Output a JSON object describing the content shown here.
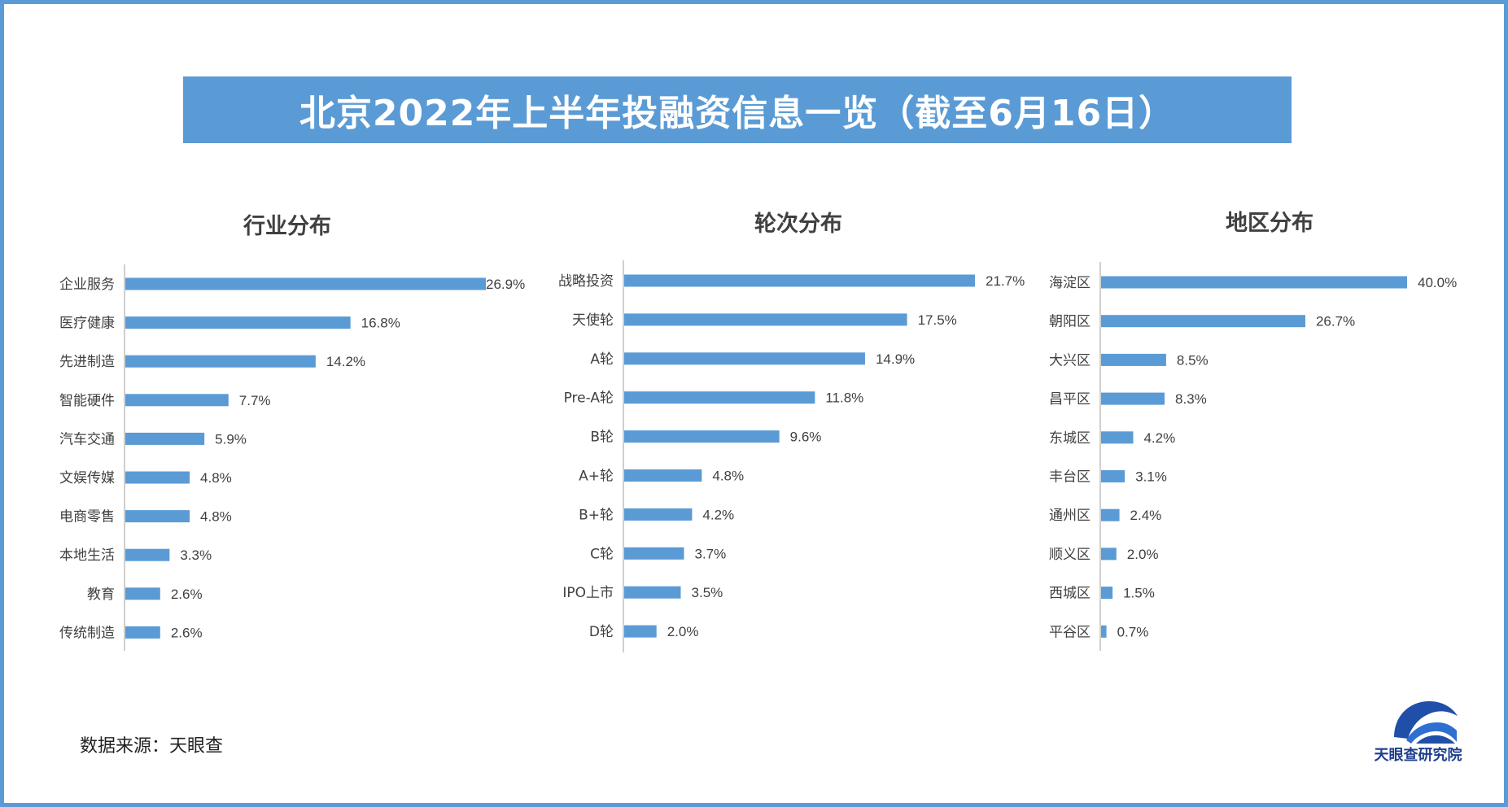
{
  "title": "北京2022年上半年投融资信息一览（截至6月16日）",
  "source": "数据来源：天眼查",
  "logo": {
    "text": "天眼查研究院",
    "icon": "tianyancha-logo-icon"
  },
  "colors": {
    "bar": "#5b9bd5",
    "frame": "#5b9bd5",
    "axis": "#bfbfbf"
  },
  "chart_data": [
    {
      "type": "bar",
      "orientation": "horizontal",
      "title": "行业分布",
      "categories": [
        "企业服务",
        "医疗健康",
        "先进制造",
        "智能硬件",
        "汽车交通",
        "文娱传媒",
        "电商零售",
        "本地生活",
        "教育",
        "传统制造"
      ],
      "values": [
        26.9,
        16.8,
        14.2,
        7.7,
        5.9,
        4.8,
        4.8,
        3.3,
        2.6,
        2.6
      ],
      "data_labels": [
        "26.9%",
        "16.8%",
        "14.2%",
        "7.7%",
        "5.9%",
        "4.8%",
        "4.8%",
        "3.3%",
        "2.6%",
        "2.6%"
      ],
      "unit": "%"
    },
    {
      "type": "bar",
      "orientation": "horizontal",
      "title": "轮次分布",
      "categories": [
        "战略投资",
        "天使轮",
        "A轮",
        "Pre-A轮",
        "B轮",
        "A+轮",
        "B+轮",
        "C轮",
        "IPO上市",
        "D轮"
      ],
      "values": [
        21.7,
        17.5,
        14.9,
        11.8,
        9.6,
        4.8,
        4.2,
        3.7,
        3.5,
        2.0
      ],
      "data_labels": [
        "21.7%",
        "17.5%",
        "14.9%",
        "11.8%",
        "9.6%",
        "4.8%",
        "4.2%",
        "3.7%",
        "3.5%",
        "2.0%"
      ],
      "unit": "%"
    },
    {
      "type": "bar",
      "orientation": "horizontal",
      "title": "地区分布",
      "categories": [
        "海淀区",
        "朝阳区",
        "大兴区",
        "昌平区",
        "东城区",
        "丰台区",
        "通州区",
        "顺义区",
        "西城区",
        "平谷区"
      ],
      "values": [
        40.0,
        26.7,
        8.5,
        8.3,
        4.2,
        3.1,
        2.4,
        2.0,
        1.5,
        0.7
      ],
      "data_labels": [
        "40.0%",
        "26.7%",
        "8.5%",
        "8.3%",
        "4.2%",
        "3.1%",
        "2.4%",
        "2.0%",
        "1.5%",
        "0.7%"
      ],
      "unit": "%"
    }
  ]
}
